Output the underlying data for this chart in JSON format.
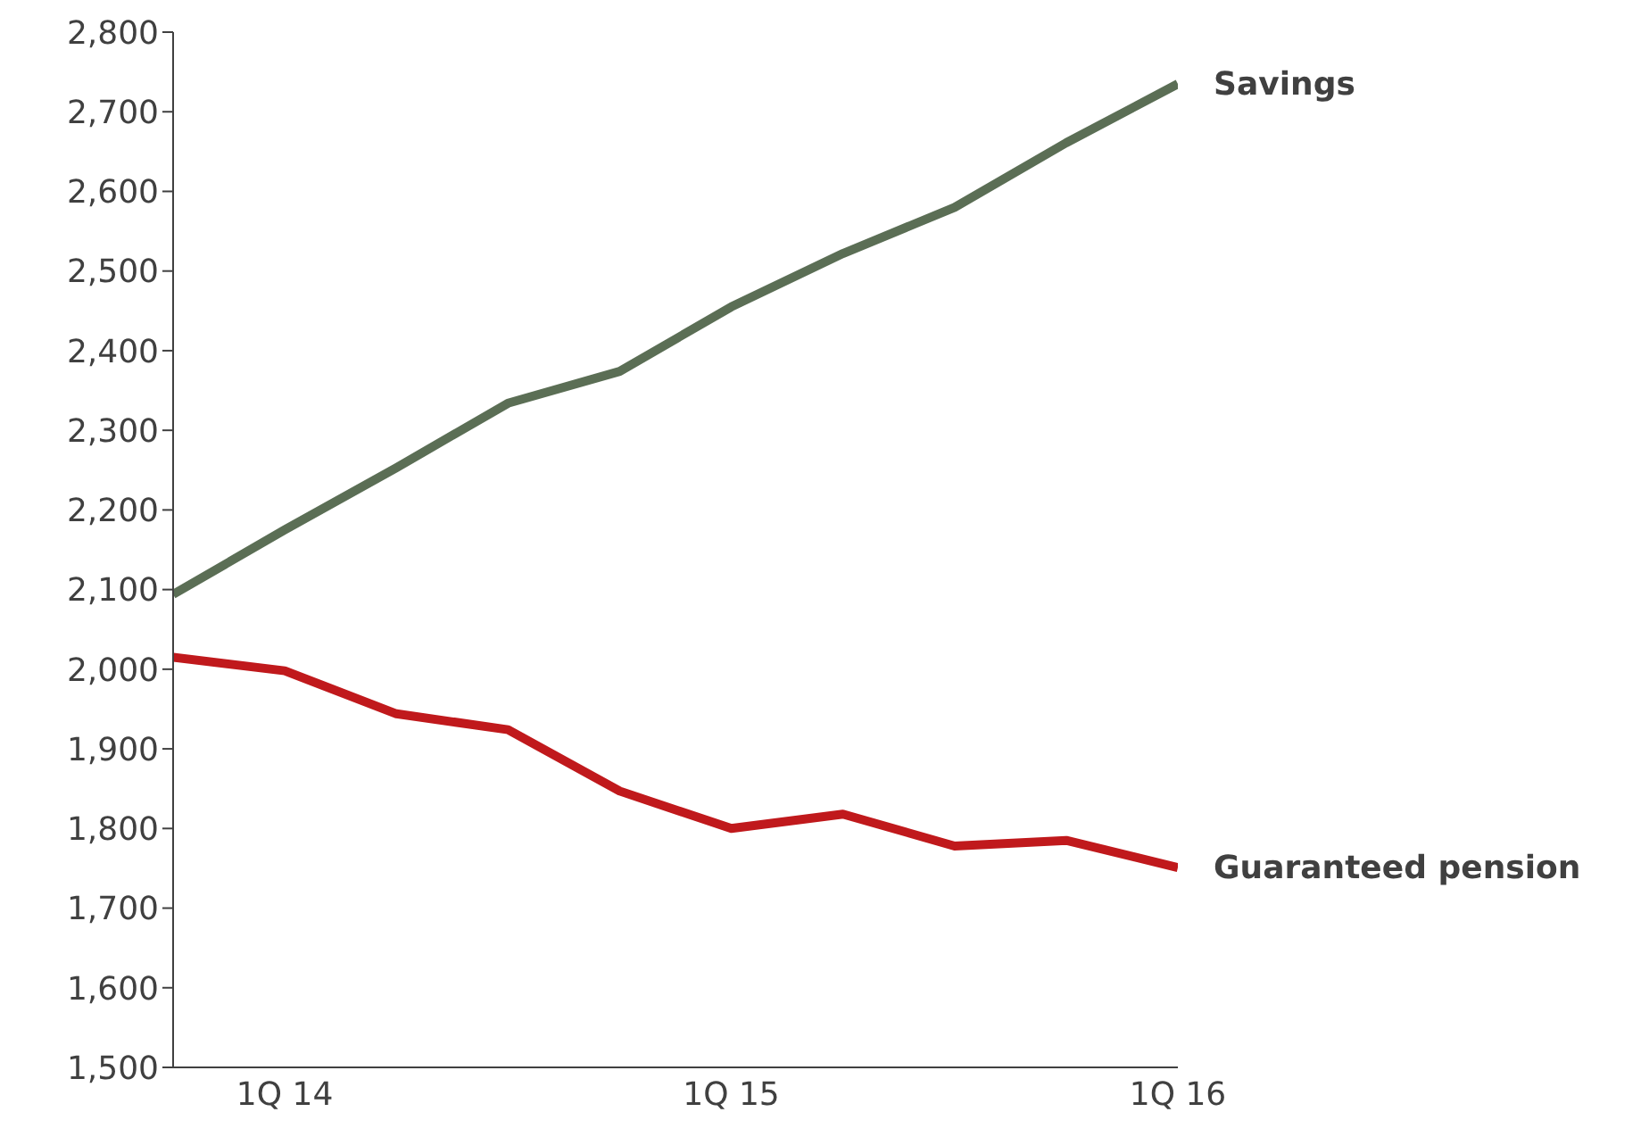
{
  "chart_data": {
    "type": "line",
    "categories": [
      null,
      "1Q 14",
      null,
      null,
      null,
      "1Q 15",
      null,
      null,
      null,
      "1Q 16"
    ],
    "series": [
      {
        "name": "Savings",
        "color": "#5b6e55",
        "values": [
          2094,
          2175,
          2253,
          2334,
          2374,
          2455,
          2522,
          2580,
          2661,
          2735
        ]
      },
      {
        "name": "Guaranteed pension",
        "color": "#c0191c",
        "values": [
          2015,
          1998,
          1944,
          1924,
          1847,
          1800,
          1818,
          1778,
          1785,
          1751
        ]
      }
    ],
    "ylim": [
      1500,
      2800
    ],
    "yticks": [
      {
        "value": 1500,
        "label": "1,500"
      },
      {
        "value": 1600,
        "label": "1,600"
      },
      {
        "value": 1700,
        "label": "1,700"
      },
      {
        "value": 1800,
        "label": "1,800"
      },
      {
        "value": 1900,
        "label": "1,900"
      },
      {
        "value": 2000,
        "label": "2,000"
      },
      {
        "value": 2100,
        "label": "2,100"
      },
      {
        "value": 2200,
        "label": "2,200"
      },
      {
        "value": 2300,
        "label": "2,300"
      },
      {
        "value": 2400,
        "label": "2,400"
      },
      {
        "value": 2500,
        "label": "2,500"
      },
      {
        "value": 2600,
        "label": "2,600"
      },
      {
        "value": 2700,
        "label": "2,700"
      },
      {
        "value": 2800,
        "label": "2,800"
      }
    ],
    "grid": false,
    "legend": false,
    "marker": "none",
    "line_style": "solid"
  }
}
